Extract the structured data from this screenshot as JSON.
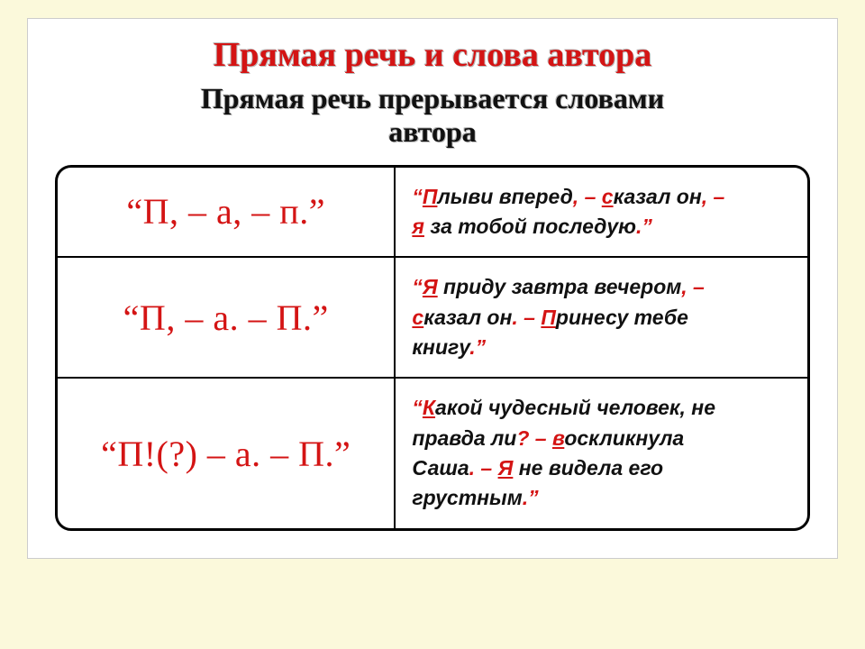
{
  "colors": {
    "background": "#fbf9db",
    "card_background": "#ffffff",
    "accent_red": "#d41414",
    "text_black": "#111111",
    "border_black": "#000000"
  },
  "typography": {
    "title_fontsize": 38,
    "subtitle_fontsize": 32,
    "pattern_fontsize": 40,
    "example_fontsize": 23,
    "title_family": "Georgia, Times New Roman, serif",
    "example_family": "Arial, Helvetica, sans-serif"
  },
  "title": "Прямая речь и слова автора",
  "subtitle_line1": "Прямая речь прерывается словами",
  "subtitle_line2": "автора",
  "table": {
    "border_radius": 18,
    "border_width": 3,
    "rows": [
      {
        "pattern": "“П, – а, – п.”",
        "example": {
          "segments": [
            {
              "t": "“",
              "style": "r"
            },
            {
              "t": "П",
              "style": "ru"
            },
            {
              "t": "лыви вперед",
              "style": "plain"
            },
            {
              "t": ", – ",
              "style": "r"
            },
            {
              "t": "с",
              "style": "ru"
            },
            {
              "t": "казал он",
              "style": "plain"
            },
            {
              "t": ", – ",
              "style": "r"
            },
            {
              "t": "\n",
              "style": "br"
            },
            {
              "t": "я",
              "style": "ru"
            },
            {
              "t": " за тобой последую",
              "style": "plain"
            },
            {
              "t": ".”",
              "style": "r"
            }
          ]
        }
      },
      {
        "pattern": "“П, – а. – П.”",
        "example": {
          "segments": [
            {
              "t": "“",
              "style": "r"
            },
            {
              "t": "Я",
              "style": "ru"
            },
            {
              "t": " приду завтра вечером",
              "style": "plain"
            },
            {
              "t": ", – ",
              "style": "r"
            },
            {
              "t": "\n",
              "style": "br"
            },
            {
              "t": "с",
              "style": "ru"
            },
            {
              "t": "казал он",
              "style": "plain"
            },
            {
              "t": ". – ",
              "style": "r"
            },
            {
              "t": "П",
              "style": "ru"
            },
            {
              "t": "ринесу тебе ",
              "style": "plain"
            },
            {
              "t": "\n",
              "style": "br"
            },
            {
              "t": "книгу",
              "style": "plain"
            },
            {
              "t": ".”",
              "style": "r"
            }
          ]
        }
      },
      {
        "pattern": "“П!(?) – а. – П.”",
        "example": {
          "segments": [
            {
              "t": "“",
              "style": "r"
            },
            {
              "t": "К",
              "style": "ru"
            },
            {
              "t": "акой чудесный человек, не ",
              "style": "plain"
            },
            {
              "t": "\n",
              "style": "br"
            },
            {
              "t": "правда ли",
              "style": "plain"
            },
            {
              "t": "? – ",
              "style": "r"
            },
            {
              "t": "в",
              "style": "ru"
            },
            {
              "t": "оскликнула ",
              "style": "plain"
            },
            {
              "t": "\n",
              "style": "br"
            },
            {
              "t": "Саша",
              "style": "plain"
            },
            {
              "t": ". – ",
              "style": "r"
            },
            {
              "t": "Я",
              "style": "ru"
            },
            {
              "t": " не видела его ",
              "style": "plain"
            },
            {
              "t": "\n",
              "style": "br"
            },
            {
              "t": "грустным",
              "style": "plain"
            },
            {
              "t": ".”",
              "style": "r"
            }
          ]
        }
      }
    ]
  }
}
